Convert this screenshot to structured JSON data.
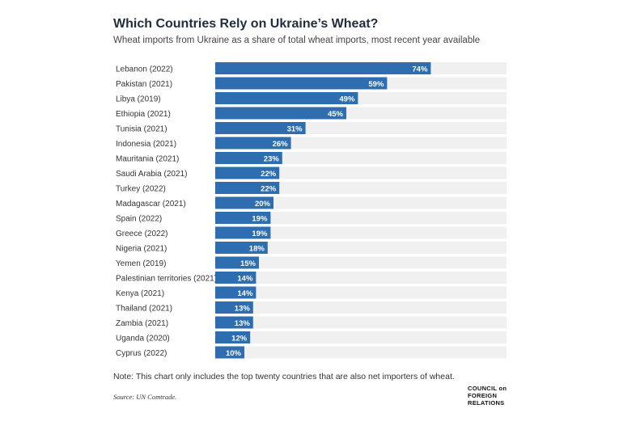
{
  "header": {
    "title": "Which Countries Rely on Ukraine’s Wheat?",
    "subtitle": "Wheat imports from Ukraine as a share of total wheat imports, most recent year available"
  },
  "chart_data": {
    "type": "bar",
    "orientation": "horizontal",
    "categories": [
      "Lebanon (2022)",
      "Pakistan (2021)",
      "Libya (2019)",
      "Ethiopia (2021)",
      "Tunisia (2021)",
      "Indonesia (2021)",
      "Mauritania (2021)",
      "Saudi Arabia (2021)",
      "Turkey (2022)",
      "Madagascar (2021)",
      "Spain (2022)",
      "Greece (2022)",
      "Nigeria (2021)",
      "Yemen (2019)",
      "Palestinian territories (2021)",
      "Kenya (2021)",
      "Thailand (2021)",
      "Zambia (2021)",
      "Uganda (2020)",
      "Cyprus (2022)"
    ],
    "values": [
      74,
      59,
      49,
      45,
      31,
      26,
      23,
      22,
      22,
      20,
      19,
      19,
      18,
      15,
      14,
      14,
      13,
      13,
      12,
      10
    ],
    "data_labels": [
      "74%",
      "59%",
      "49%",
      "45%",
      "31%",
      "26%",
      "23%",
      "22%",
      "22%",
      "20%",
      "19%",
      "19%",
      "18%",
      "15%",
      "14%",
      "14%",
      "13%",
      "13%",
      "12%",
      "10%"
    ],
    "xlim": [
      0,
      100
    ],
    "bar_color": "#2e6db0",
    "track_color": "#f0f0f0",
    "label_color": "#ffffff",
    "grid": false,
    "legend": "none"
  },
  "footer": {
    "note": "Note: This chart only includes the top twenty countries that are also net importers of wheat.",
    "source": "Source: UN Comtrade.",
    "logo_lines": [
      "COUNCIL on",
      "FOREIGN",
      "RELATIONS"
    ]
  }
}
